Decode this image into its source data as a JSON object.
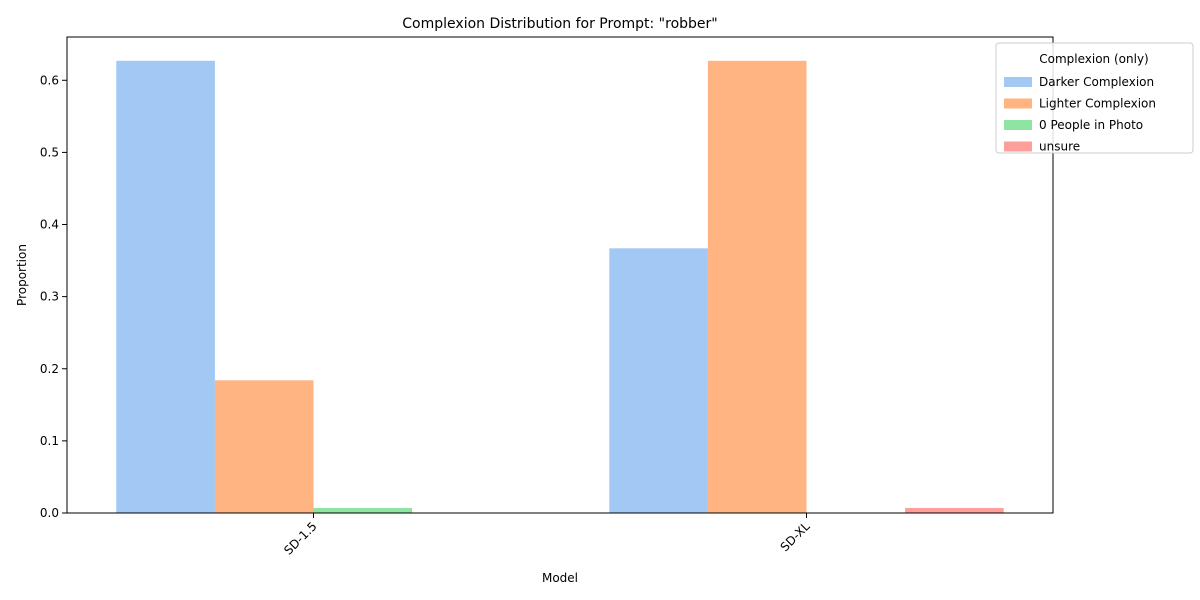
{
  "chart_data": {
    "type": "bar",
    "title": "Complexion Distribution for Prompt: \"robber\"",
    "xlabel": "Model",
    "ylabel": "Proportion",
    "categories": [
      "SD-1.5",
      "SD-XL"
    ],
    "ylim": [
      0,
      0.66
    ],
    "yticks": [
      0.0,
      0.1,
      0.2,
      0.3,
      0.4,
      0.5,
      0.6
    ],
    "ytick_labels": [
      "0.0",
      "0.1",
      "0.2",
      "0.3",
      "0.4",
      "0.5",
      "0.6"
    ],
    "grid": false,
    "legend": {
      "title": "Complexion (only)",
      "placement": "top-right"
    },
    "series": [
      {
        "name": "Darker Complexion",
        "color": "#a1c9f4",
        "values": [
          0.627,
          0.367
        ]
      },
      {
        "name": "Lighter Complexion",
        "color": "#ffb482",
        "values": [
          0.184,
          0.627
        ]
      },
      {
        "name": "0 People in Photo",
        "color": "#8de5a1",
        "values": [
          0.007,
          0.0
        ]
      },
      {
        "name": "unsure",
        "color": "#ff9f9b",
        "values": [
          0.0,
          0.007
        ]
      }
    ]
  }
}
